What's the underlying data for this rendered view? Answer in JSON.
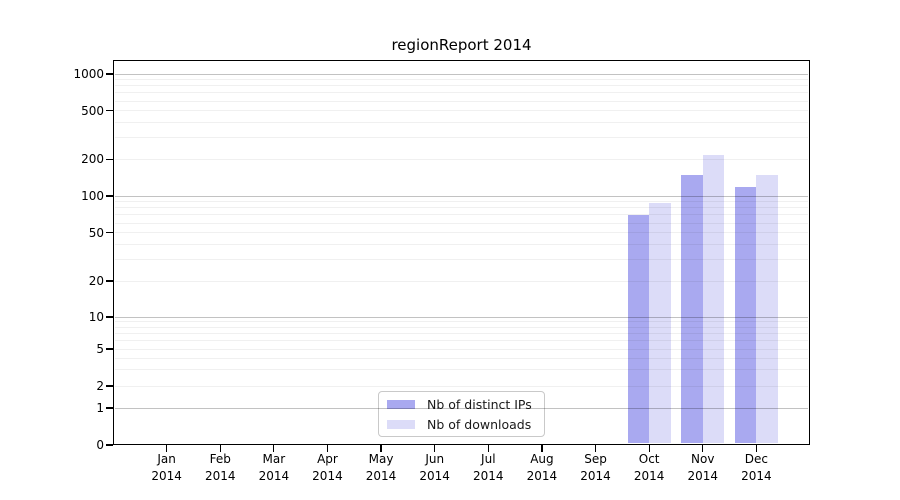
{
  "chart_data": {
    "type": "bar",
    "title": "regionReport 2014",
    "categories": [
      "Jan 2014",
      "Feb 2014",
      "Mar 2014",
      "Apr 2014",
      "May 2014",
      "Jun 2014",
      "Jul 2014",
      "Aug 2014",
      "Sep 2014",
      "Oct 2014",
      "Nov 2014",
      "Dec 2014"
    ],
    "series": [
      {
        "name": "Nb of distinct IPs",
        "color": "#a9a9f0",
        "values": [
          0,
          0,
          0,
          0,
          0,
          0,
          0,
          0,
          0,
          70,
          150,
          118
        ]
      },
      {
        "name": "Nb of downloads",
        "color": "#dcdcf8",
        "values": [
          0,
          0,
          0,
          0,
          0,
          0,
          0,
          0,
          0,
          88,
          218,
          148
        ]
      }
    ],
    "xlabel": "",
    "ylabel": "",
    "y_axis": {
      "scale": "symlog",
      "tick_values": [
        0,
        1,
        2,
        5,
        10,
        20,
        50,
        100,
        200,
        500,
        1000
      ],
      "tick_labels": [
        "0",
        "1",
        "2",
        "5",
        "10",
        "20",
        "50",
        "100",
        "200",
        "500",
        "1000"
      ],
      "major_gridline_values": [
        1,
        10,
        100,
        1000
      ],
      "minor_gridline_values": [
        2,
        3,
        4,
        5,
        6,
        7,
        8,
        9,
        20,
        30,
        40,
        50,
        60,
        70,
        80,
        90,
        200,
        300,
        400,
        500,
        600,
        700,
        800,
        900
      ],
      "ylim": [
        0,
        1300
      ]
    },
    "legend": {
      "entries": [
        "Nb of distinct IPs",
        "Nb of downloads"
      ],
      "position": "bottom-center"
    },
    "grid": "horizontal, drawn above bars and legend",
    "colors": {
      "bar_distinct_ips": "#a9a9f0",
      "bar_downloads": "#dcdcf8",
      "major_gridline": "#c2c2c2",
      "minor_gridline": "#f0f0f0",
      "axis": "#000000",
      "background": "#ffffff"
    }
  }
}
